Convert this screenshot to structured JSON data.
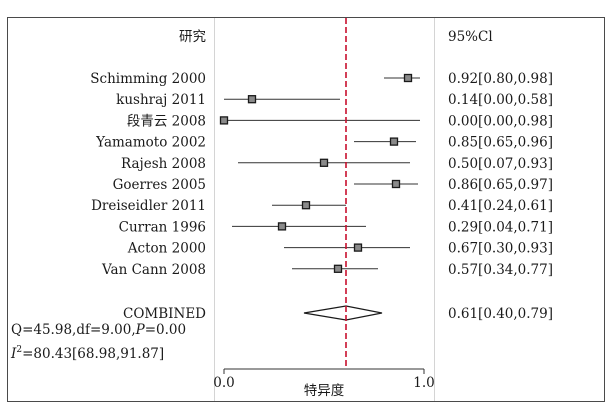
{
  "chart_data": {
    "type": "forest",
    "header": {
      "study": "研究",
      "ci": "95%Cl"
    },
    "xlabel": "特异度",
    "xlim": [
      0.0,
      1.0
    ],
    "xticks": [
      "0.0",
      "1.0"
    ],
    "reference_line": 0.61,
    "reference_color": "#c8102e",
    "studies": [
      {
        "name": "Schimming",
        "year": "2000",
        "est": 0.92,
        "lo": 0.8,
        "hi": 0.98,
        "ci": "0.92[0.80,0.98]"
      },
      {
        "name": "kushraj",
        "year": "2011",
        "est": 0.14,
        "lo": 0.0,
        "hi": 0.58,
        "ci": "0.14[0.00,0.58]"
      },
      {
        "name": "段青云",
        "year": "2008",
        "est": 0.0,
        "lo": 0.0,
        "hi": 0.98,
        "ci": "0.00[0.00,0.98]"
      },
      {
        "name": "Yamamoto",
        "year": "2002",
        "est": 0.85,
        "lo": 0.65,
        "hi": 0.96,
        "ci": "0.85[0.65,0.96]"
      },
      {
        "name": "Rajesh",
        "year": "2008",
        "est": 0.5,
        "lo": 0.07,
        "hi": 0.93,
        "ci": "0.50[0.07,0.93]"
      },
      {
        "name": "Goerres",
        "year": "2005",
        "est": 0.86,
        "lo": 0.65,
        "hi": 0.97,
        "ci": "0.86[0.65,0.97]"
      },
      {
        "name": "Dreiseidler",
        "year": "2011",
        "est": 0.41,
        "lo": 0.24,
        "hi": 0.61,
        "ci": "0.41[0.24,0.61]"
      },
      {
        "name": "Curran",
        "year": "1996",
        "est": 0.29,
        "lo": 0.04,
        "hi": 0.71,
        "ci": "0.29[0.04,0.71]"
      },
      {
        "name": "Acton",
        "year": "2000",
        "est": 0.67,
        "lo": 0.3,
        "hi": 0.93,
        "ci": "0.67[0.30,0.93]"
      },
      {
        "name": "Van Cann",
        "year": "2008",
        "est": 0.57,
        "lo": 0.34,
        "hi": 0.77,
        "ci": "0.57[0.34,0.77]"
      }
    ],
    "combined": {
      "name": "COMBINED",
      "est": 0.61,
      "lo": 0.4,
      "hi": 0.79,
      "ci": "0.61[0.40,0.79]"
    },
    "stats": {
      "heterogeneity": "Q=45.98,df=9.00,",
      "p_symbol": "P",
      "p_value": "=0.00",
      "i2_symbol": "I",
      "i2_exp": "2",
      "i2_value": "=80.43[68.98,91.87]"
    }
  }
}
